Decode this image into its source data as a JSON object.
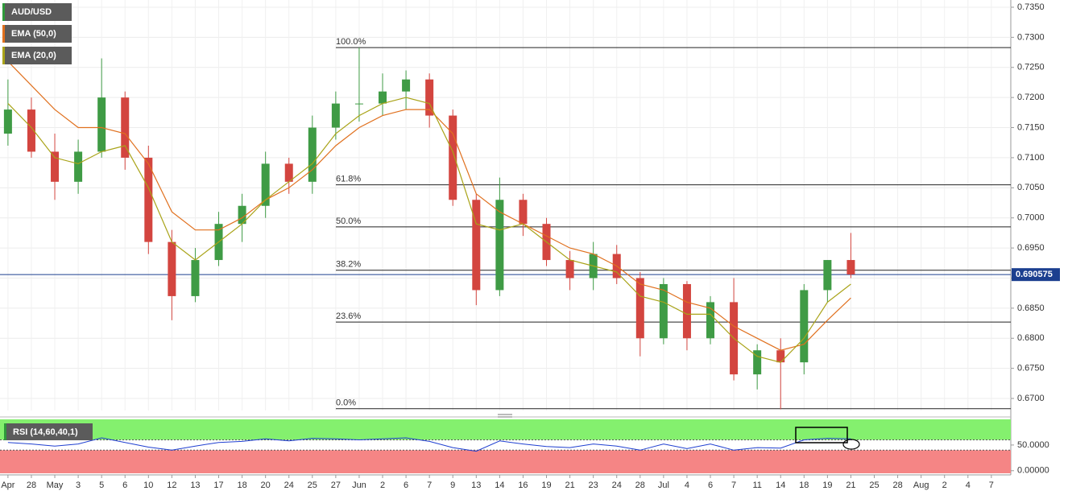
{
  "chart_data": {
    "type": "candlestick",
    "title": "AUD/USD",
    "x": [
      0,
      1,
      2,
      3,
      4,
      5,
      6,
      7,
      8,
      9,
      10,
      11,
      12,
      13,
      14,
      15,
      16,
      17,
      18,
      19,
      20,
      21,
      22,
      23,
      24,
      25,
      26,
      27,
      28,
      29,
      30,
      31,
      32,
      33,
      34,
      35,
      36
    ],
    "open": [
      0.714,
      0.718,
      0.711,
      0.706,
      0.711,
      0.72,
      0.71,
      0.696,
      0.687,
      0.693,
      0.699,
      0.702,
      0.709,
      0.706,
      0.715,
      0.719,
      0.719,
      0.721,
      0.723,
      0.717,
      0.703,
      0.688,
      0.703,
      0.699,
      0.693,
      0.69,
      0.694,
      0.69,
      0.68,
      0.689,
      0.68,
      0.686,
      0.674,
      0.678,
      0.676,
      0.688,
      0.693
    ],
    "high": [
      0.723,
      0.72,
      0.714,
      0.713,
      0.7265,
      0.721,
      0.712,
      0.698,
      0.695,
      0.701,
      0.704,
      0.711,
      0.71,
      0.717,
      0.721,
      0.7283,
      0.724,
      0.7245,
      0.724,
      0.718,
      0.704,
      0.7067,
      0.704,
      0.7,
      0.6945,
      0.696,
      0.6955,
      0.691,
      0.69,
      0.6895,
      0.687,
      0.69,
      0.679,
      0.68,
      0.689,
      0.693,
      0.6975
    ],
    "low": [
      0.712,
      0.71,
      0.703,
      0.704,
      0.71,
      0.708,
      0.694,
      0.683,
      0.686,
      0.692,
      0.696,
      0.7,
      0.704,
      0.704,
      0.713,
      0.716,
      0.717,
      0.718,
      0.715,
      0.702,
      0.6855,
      0.687,
      0.697,
      0.692,
      0.688,
      0.688,
      0.689,
      0.677,
      0.679,
      0.678,
      0.679,
      0.673,
      0.6715,
      0.6682,
      0.674,
      0.686,
      0.69
    ],
    "close": [
      0.718,
      0.711,
      0.706,
      0.711,
      0.72,
      0.71,
      0.696,
      0.687,
      0.693,
      0.699,
      0.702,
      0.709,
      0.706,
      0.715,
      0.719,
      0.719,
      0.721,
      0.723,
      0.717,
      0.703,
      0.688,
      0.703,
      0.699,
      0.693,
      0.69,
      0.694,
      0.69,
      0.68,
      0.689,
      0.68,
      0.686,
      0.674,
      0.678,
      0.676,
      0.688,
      0.693,
      0.6906
    ],
    "up_color": "#3f9b45",
    "down_color": "#d3453f",
    "series": [
      {
        "name": "EMA (50,0)",
        "color": "#e0701e",
        "values": [
          0.726,
          0.722,
          0.718,
          0.715,
          0.715,
          0.714,
          0.709,
          0.701,
          0.698,
          0.698,
          0.7,
          0.703,
          0.705,
          0.708,
          0.712,
          0.715,
          0.717,
          0.718,
          0.718,
          0.714,
          0.704,
          0.701,
          0.699,
          0.697,
          0.695,
          0.694,
          0.692,
          0.689,
          0.688,
          0.686,
          0.685,
          0.682,
          0.68,
          0.678,
          0.679,
          0.683,
          0.6867
        ]
      },
      {
        "name": "EMA (20,0)",
        "color": "#a9a318",
        "values": [
          0.719,
          0.715,
          0.71,
          0.709,
          0.711,
          0.712,
          0.705,
          0.696,
          0.693,
          0.696,
          0.699,
          0.703,
          0.706,
          0.709,
          0.714,
          0.717,
          0.719,
          0.72,
          0.719,
          0.711,
          0.699,
          0.698,
          0.699,
          0.696,
          0.693,
          0.692,
          0.691,
          0.687,
          0.686,
          0.684,
          0.684,
          0.68,
          0.677,
          0.676,
          0.68,
          0.686,
          0.689
        ]
      }
    ],
    "xlim": [
      -0.34,
      42.83
    ],
    "xticks": [
      {
        "value": 0,
        "label": "Apr"
      },
      {
        "value": 1,
        "label": "28"
      },
      {
        "value": 2,
        "label": "May"
      },
      {
        "value": 3,
        "label": "3"
      },
      {
        "value": 4,
        "label": "5"
      },
      {
        "value": 5,
        "label": "6"
      },
      {
        "value": 6,
        "label": "10"
      },
      {
        "value": 7,
        "label": "12"
      },
      {
        "value": 8,
        "label": "13"
      },
      {
        "value": 9,
        "label": "17"
      },
      {
        "value": 10,
        "label": "18"
      },
      {
        "value": 11,
        "label": "20"
      },
      {
        "value": 12,
        "label": "24"
      },
      {
        "value": 13,
        "label": "25"
      },
      {
        "value": 14,
        "label": "27"
      },
      {
        "value": 15,
        "label": "Jun"
      },
      {
        "value": 16,
        "label": "2"
      },
      {
        "value": 17,
        "label": "6"
      },
      {
        "value": 18,
        "label": "7"
      },
      {
        "value": 19,
        "label": "9"
      },
      {
        "value": 20,
        "label": "13"
      },
      {
        "value": 21,
        "label": "14"
      },
      {
        "value": 22,
        "label": "16"
      },
      {
        "value": 23,
        "label": "19"
      },
      {
        "value": 24,
        "label": "21"
      },
      {
        "value": 25,
        "label": "23"
      },
      {
        "value": 26,
        "label": "24"
      },
      {
        "value": 27,
        "label": "28"
      },
      {
        "value": 28,
        "label": "Jul"
      },
      {
        "value": 29,
        "label": "4"
      },
      {
        "value": 30,
        "label": "6"
      },
      {
        "value": 31,
        "label": "7"
      },
      {
        "value": 32,
        "label": "11"
      },
      {
        "value": 33,
        "label": "14"
      },
      {
        "value": 34,
        "label": "18"
      },
      {
        "value": 35,
        "label": "19"
      },
      {
        "value": 36,
        "label": "21"
      },
      {
        "value": 37,
        "label": "25"
      },
      {
        "value": 38,
        "label": "28"
      },
      {
        "value": 39,
        "label": "Aug"
      },
      {
        "value": 40,
        "label": "2"
      },
      {
        "value": 41,
        "label": "4"
      },
      {
        "value": 42,
        "label": "7"
      }
    ],
    "ylim": [
      0.668,
      0.7362
    ],
    "yticks": [
      {
        "value": 0.735,
        "label": "0.7350"
      },
      {
        "value": 0.73,
        "label": "0.7300"
      },
      {
        "value": 0.725,
        "label": "0.7250"
      },
      {
        "value": 0.72,
        "label": "0.7200"
      },
      {
        "value": 0.715,
        "label": "0.7150"
      },
      {
        "value": 0.71,
        "label": "0.7100"
      },
      {
        "value": 0.705,
        "label": "0.7050"
      },
      {
        "value": 0.7,
        "label": "0.7000"
      },
      {
        "value": 0.695,
        "label": "0.6950"
      },
      {
        "value": 0.69,
        "label": "0.6900"
      },
      {
        "value": 0.685,
        "label": "0.6850"
      },
      {
        "value": 0.68,
        "label": "0.6800"
      },
      {
        "value": 0.675,
        "label": "0.6750"
      },
      {
        "value": 0.67,
        "label": "0.6700"
      }
    ],
    "grid": true,
    "last_price": 0.690575,
    "fibonacci": {
      "labels": [
        "100.0%",
        "61.8%",
        "50.0%",
        "38.2%",
        "23.6%",
        "0.0%"
      ],
      "prices": [
        0.7283,
        0.7055,
        0.6985,
        0.6913,
        0.6827,
        0.6683
      ]
    },
    "rsi": {
      "name": "RSI (14,60,40,1)",
      "color": "#1f3fd0",
      "upper": 60,
      "lower": 40,
      "values": [
        55,
        52,
        48,
        52,
        64,
        55,
        46,
        40,
        48,
        55,
        57,
        62,
        58,
        63,
        62,
        60,
        62,
        64,
        57,
        45,
        38,
        58,
        52,
        47,
        45,
        52,
        48,
        40,
        52,
        43,
        52,
        40,
        45,
        44,
        60,
        63,
        62
      ],
      "ylim": [
        -5,
        100
      ],
      "yticks": [
        {
          "value": 50,
          "label": "50.0000"
        },
        {
          "value": 0,
          "label": "0.00000"
        }
      ]
    }
  }
}
